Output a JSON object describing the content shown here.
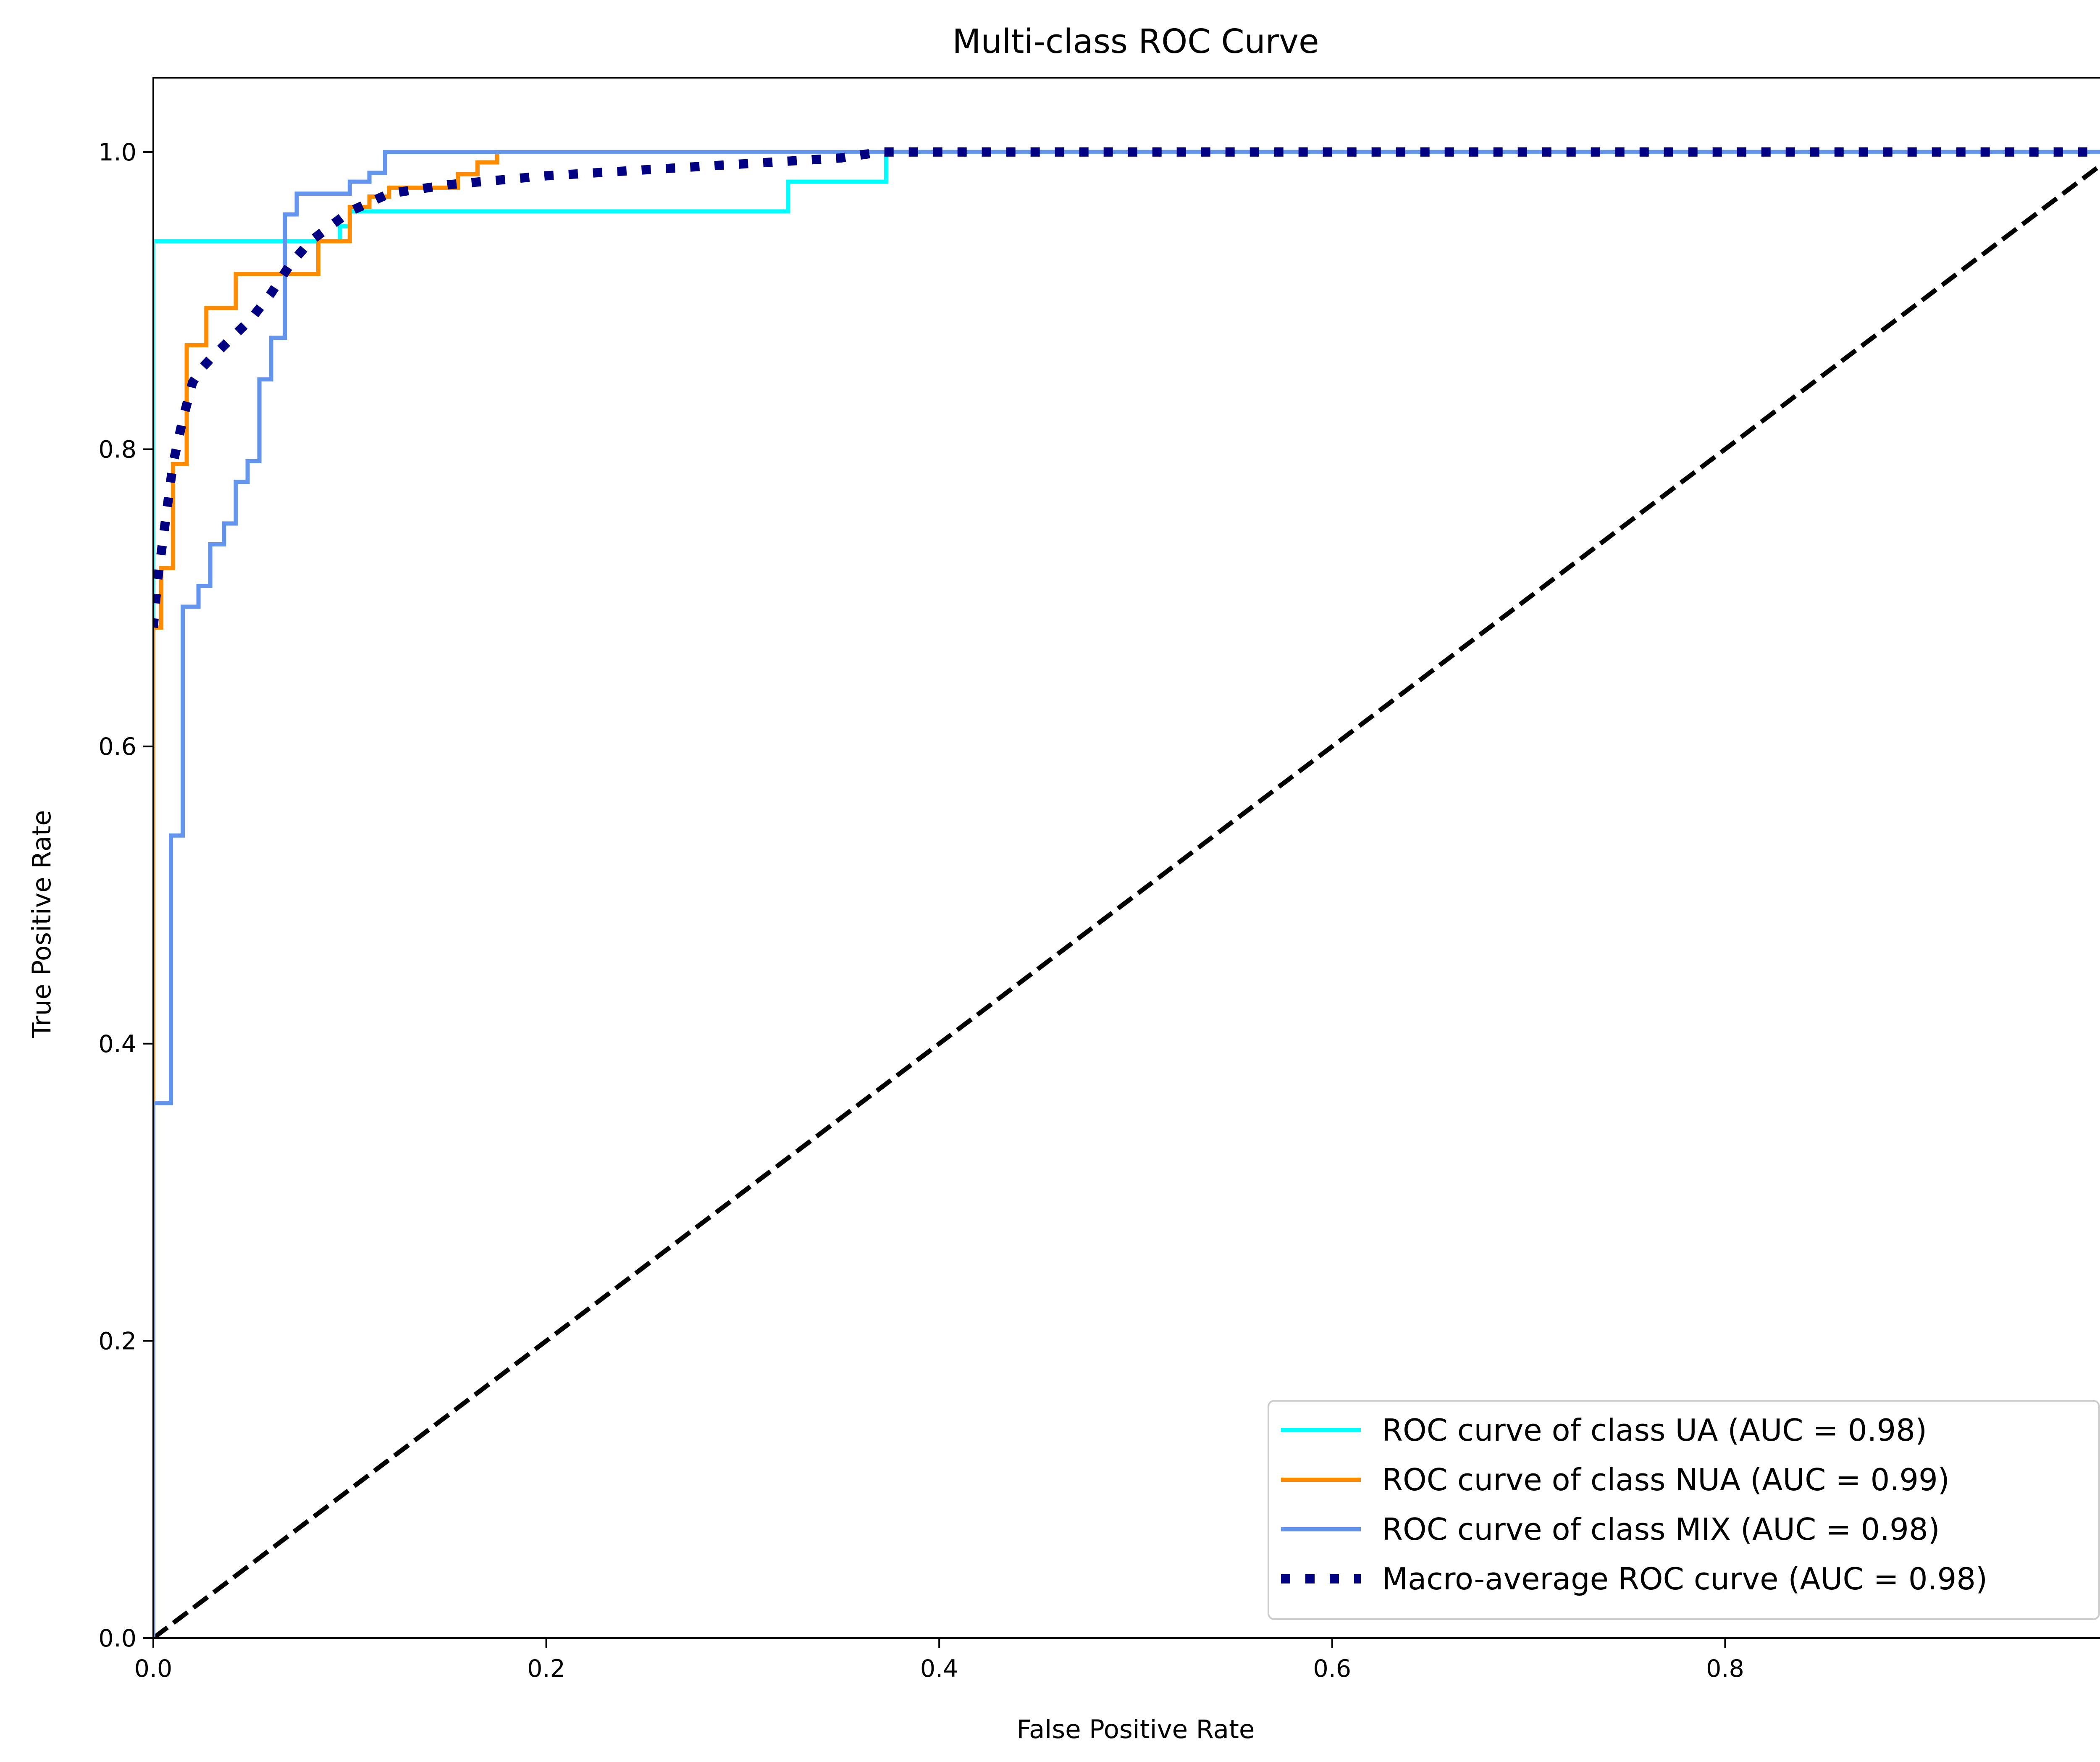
{
  "chart_data": {
    "type": "line",
    "title": "Multi-class ROC Curve",
    "xlabel": "False Positive Rate",
    "ylabel": "True Positive Rate",
    "xlim": [
      0.0,
      1.0
    ],
    "ylim": [
      0.0,
      1.05
    ],
    "x_ticks": [
      0.0,
      0.2,
      0.4,
      0.6,
      0.8,
      1.0
    ],
    "x_tick_labels": [
      "0.0",
      "0.2",
      "0.4",
      "0.6",
      "0.8",
      "1.0"
    ],
    "y_ticks": [
      0.0,
      0.2,
      0.4,
      0.6,
      0.8,
      1.0
    ],
    "y_tick_labels": [
      "0.0",
      "0.2",
      "0.4",
      "0.6",
      "0.8",
      "1.0"
    ],
    "grid": false,
    "legend_position": "lower-right",
    "series": [
      {
        "name": "ROC curve of class UA (AUC = 0.98)",
        "color": "#00ffff",
        "style": "solid",
        "x": [
          0.0,
          0.0,
          0.095,
          0.095,
          0.1,
          0.1,
          0.323,
          0.323,
          0.373,
          0.373,
          1.0
        ],
        "y": [
          0.0,
          0.94,
          0.94,
          0.95,
          0.95,
          0.96,
          0.96,
          0.98,
          0.98,
          1.0,
          1.0
        ]
      },
      {
        "name": "ROC curve of class NUA (AUC = 0.99)",
        "color": "#ff8c00",
        "style": "solid",
        "x": [
          0.0,
          0.0,
          0.004,
          0.004,
          0.01,
          0.01,
          0.017,
          0.017,
          0.027,
          0.027,
          0.042,
          0.042,
          0.084,
          0.084,
          0.1,
          0.1,
          0.11,
          0.11,
          0.12,
          0.12,
          0.155,
          0.155,
          0.165,
          0.165,
          0.175,
          0.175,
          1.0
        ],
        "y": [
          0.0,
          0.68,
          0.68,
          0.72,
          0.72,
          0.79,
          0.79,
          0.87,
          0.87,
          0.895,
          0.895,
          0.918,
          0.918,
          0.94,
          0.94,
          0.963,
          0.963,
          0.97,
          0.97,
          0.976,
          0.976,
          0.985,
          0.985,
          0.993,
          0.993,
          1.0,
          1.0
        ]
      },
      {
        "name": "ROC curve of class MIX (AUC = 0.98)",
        "color": "#6495ed",
        "style": "solid",
        "x": [
          0.0,
          0.0,
          0.009,
          0.009,
          0.015,
          0.015,
          0.023,
          0.023,
          0.029,
          0.029,
          0.036,
          0.036,
          0.042,
          0.042,
          0.048,
          0.048,
          0.054,
          0.054,
          0.06,
          0.06,
          0.067,
          0.067,
          0.073,
          0.073,
          0.079,
          0.079,
          0.1,
          0.1,
          0.11,
          0.11,
          0.118,
          0.118,
          1.0
        ],
        "y": [
          0.0,
          0.36,
          0.36,
          0.54,
          0.54,
          0.694,
          0.694,
          0.708,
          0.708,
          0.736,
          0.736,
          0.75,
          0.75,
          0.778,
          0.778,
          0.792,
          0.792,
          0.847,
          0.847,
          0.875,
          0.875,
          0.958,
          0.958,
          0.972,
          0.972,
          0.972,
          0.972,
          0.98,
          0.98,
          0.986,
          0.986,
          1.0,
          1.0
        ]
      },
      {
        "name": "Macro-average ROC curve (AUC = 0.98)",
        "color": "#000080",
        "style": "dotted",
        "x": [
          0.0,
          0.002,
          0.006,
          0.01,
          0.015,
          0.02,
          0.025,
          0.03,
          0.04,
          0.05,
          0.06,
          0.07,
          0.08,
          0.09,
          0.1,
          0.12,
          0.15,
          0.2,
          0.25,
          0.3,
          0.35,
          0.37,
          0.4,
          0.6,
          0.8,
          1.0
        ],
        "y": [
          0.68,
          0.71,
          0.75,
          0.79,
          0.82,
          0.845,
          0.855,
          0.862,
          0.875,
          0.888,
          0.905,
          0.925,
          0.94,
          0.95,
          0.96,
          0.972,
          0.978,
          0.984,
          0.988,
          0.992,
          0.996,
          1.0,
          1.0,
          1.0,
          1.0,
          1.0
        ]
      }
    ],
    "reference_line": {
      "color": "#000000",
      "style": "dashed",
      "x": [
        0.0,
        1.0
      ],
      "y": [
        0.0,
        1.0
      ]
    }
  }
}
